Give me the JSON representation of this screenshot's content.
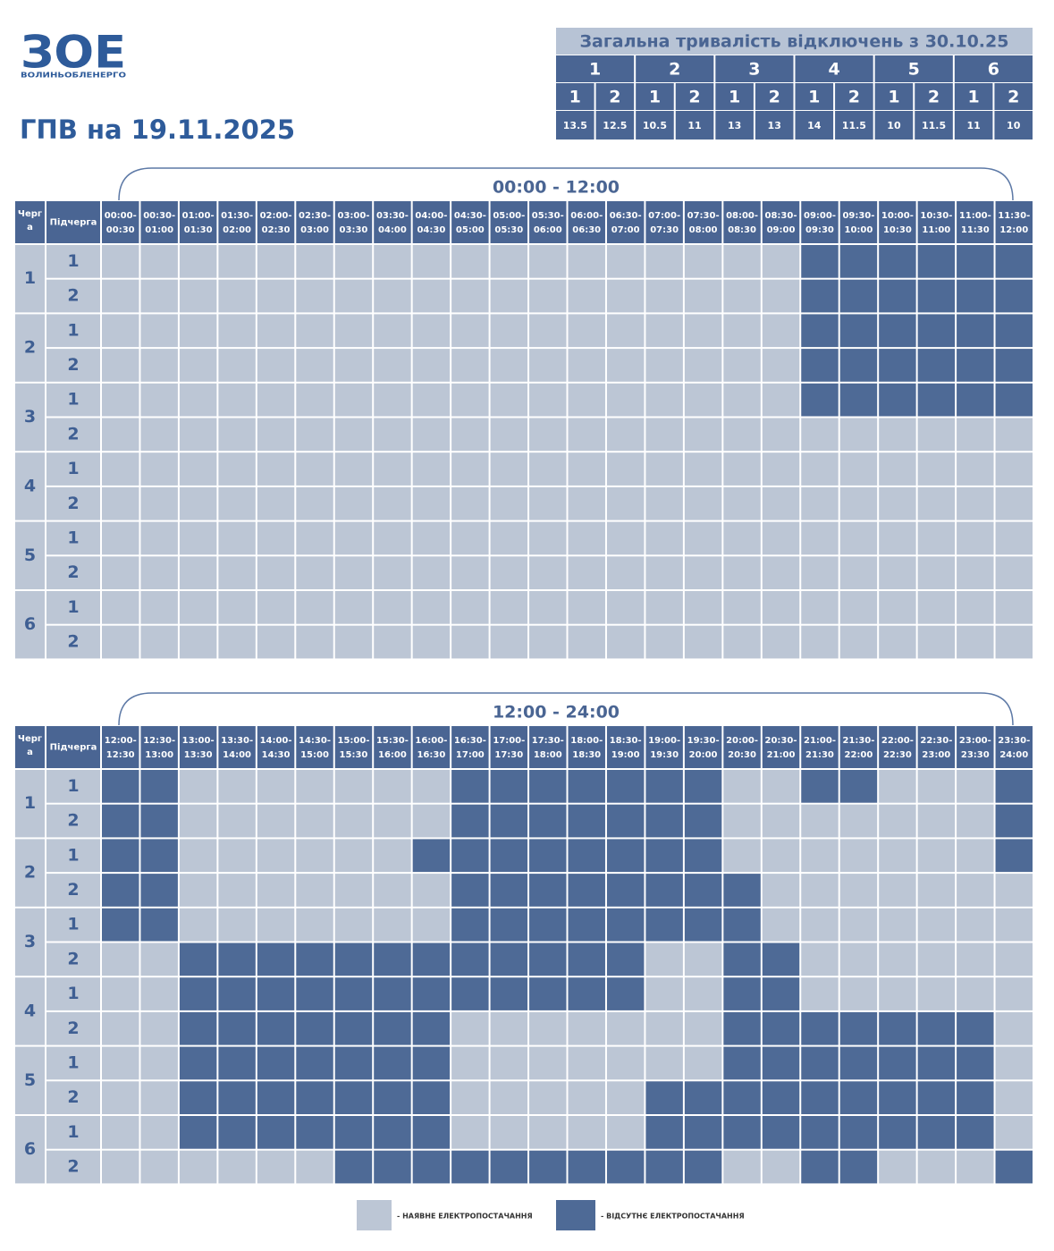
{
  "logo": {
    "mark": "ЗОЕ",
    "name": "ВОЛИНЬОБЛЕНЕРГО"
  },
  "title": "ГПВ на 19.11.2025",
  "summary": {
    "title": "Загальна тривалість відключень з 30.10.25",
    "groups": [
      {
        "label": "1",
        "subs": [
          {
            "label": "1",
            "value": 13.5
          },
          {
            "label": "2",
            "value": 12.5
          }
        ]
      },
      {
        "label": "2",
        "subs": [
          {
            "label": "1",
            "value": 10.5
          },
          {
            "label": "2",
            "value": 11
          }
        ]
      },
      {
        "label": "3",
        "subs": [
          {
            "label": "1",
            "value": 13
          },
          {
            "label": "2",
            "value": 13
          }
        ]
      },
      {
        "label": "4",
        "subs": [
          {
            "label": "1",
            "value": 14
          },
          {
            "label": "2",
            "value": 11.5
          }
        ]
      },
      {
        "label": "5",
        "subs": [
          {
            "label": "1",
            "value": 10
          },
          {
            "label": "2",
            "value": 11.5
          }
        ]
      },
      {
        "label": "6",
        "subs": [
          {
            "label": "1",
            "value": 11
          },
          {
            "label": "2",
            "value": 10
          }
        ]
      }
    ]
  },
  "halves": [
    {
      "title": "00:00 - 12:00",
      "queue_header": "Черга",
      "sub_header": "Підчерга",
      "slots": [
        [
          "00:00-",
          "00:30"
        ],
        [
          "00:30-",
          "01:00"
        ],
        [
          "01:00-",
          "01:30"
        ],
        [
          "01:30-",
          "02:00"
        ],
        [
          "02:00-",
          "02:30"
        ],
        [
          "02:30-",
          "03:00"
        ],
        [
          "03:00-",
          "03:30"
        ],
        [
          "03:30-",
          "04:00"
        ],
        [
          "04:00-",
          "04:30"
        ],
        [
          "04:30-",
          "05:00"
        ],
        [
          "05:00-",
          "05:30"
        ],
        [
          "05:30-",
          "06:00"
        ],
        [
          "06:00-",
          "06:30"
        ],
        [
          "06:30-",
          "07:00"
        ],
        [
          "07:00-",
          "07:30"
        ],
        [
          "07:30-",
          "08:00"
        ],
        [
          "08:00-",
          "08:30"
        ],
        [
          "08:30-",
          "09:00"
        ],
        [
          "09:00-",
          "09:30"
        ],
        [
          "09:30-",
          "10:00"
        ],
        [
          "10:00-",
          "10:30"
        ],
        [
          "10:30-",
          "11:00"
        ],
        [
          "11:00-",
          "11:30"
        ],
        [
          "11:30-",
          "12:00"
        ]
      ],
      "rows": [
        {
          "queue": "1",
          "subs": [
            {
              "label": "1",
              "off": [
                0,
                0,
                0,
                0,
                0,
                0,
                0,
                0,
                0,
                0,
                0,
                0,
                0,
                0,
                0,
                0,
                0,
                0,
                1,
                1,
                1,
                1,
                1,
                1
              ]
            },
            {
              "label": "2",
              "off": [
                0,
                0,
                0,
                0,
                0,
                0,
                0,
                0,
                0,
                0,
                0,
                0,
                0,
                0,
                0,
                0,
                0,
                0,
                1,
                1,
                1,
                1,
                1,
                1
              ]
            }
          ]
        },
        {
          "queue": "2",
          "subs": [
            {
              "label": "1",
              "off": [
                0,
                0,
                0,
                0,
                0,
                0,
                0,
                0,
                0,
                0,
                0,
                0,
                0,
                0,
                0,
                0,
                0,
                0,
                1,
                1,
                1,
                1,
                1,
                1
              ]
            },
            {
              "label": "2",
              "off": [
                0,
                0,
                0,
                0,
                0,
                0,
                0,
                0,
                0,
                0,
                0,
                0,
                0,
                0,
                0,
                0,
                0,
                0,
                1,
                1,
                1,
                1,
                1,
                1
              ]
            }
          ]
        },
        {
          "queue": "3",
          "subs": [
            {
              "label": "1",
              "off": [
                0,
                0,
                0,
                0,
                0,
                0,
                0,
                0,
                0,
                0,
                0,
                0,
                0,
                0,
                0,
                0,
                0,
                0,
                1,
                1,
                1,
                1,
                1,
                1
              ]
            },
            {
              "label": "2",
              "off": [
                0,
                0,
                0,
                0,
                0,
                0,
                0,
                0,
                0,
                0,
                0,
                0,
                0,
                0,
                0,
                0,
                0,
                0,
                0,
                0,
                0,
                0,
                0,
                0
              ]
            }
          ]
        },
        {
          "queue": "4",
          "subs": [
            {
              "label": "1",
              "off": [
                0,
                0,
                0,
                0,
                0,
                0,
                0,
                0,
                0,
                0,
                0,
                0,
                0,
                0,
                0,
                0,
                0,
                0,
                0,
                0,
                0,
                0,
                0,
                0
              ]
            },
            {
              "label": "2",
              "off": [
                0,
                0,
                0,
                0,
                0,
                0,
                0,
                0,
                0,
                0,
                0,
                0,
                0,
                0,
                0,
                0,
                0,
                0,
                0,
                0,
                0,
                0,
                0,
                0
              ]
            }
          ]
        },
        {
          "queue": "5",
          "subs": [
            {
              "label": "1",
              "off": [
                0,
                0,
                0,
                0,
                0,
                0,
                0,
                0,
                0,
                0,
                0,
                0,
                0,
                0,
                0,
                0,
                0,
                0,
                0,
                0,
                0,
                0,
                0,
                0
              ]
            },
            {
              "label": "2",
              "off": [
                0,
                0,
                0,
                0,
                0,
                0,
                0,
                0,
                0,
                0,
                0,
                0,
                0,
                0,
                0,
                0,
                0,
                0,
                0,
                0,
                0,
                0,
                0,
                0
              ]
            }
          ]
        },
        {
          "queue": "6",
          "subs": [
            {
              "label": "1",
              "off": [
                0,
                0,
                0,
                0,
                0,
                0,
                0,
                0,
                0,
                0,
                0,
                0,
                0,
                0,
                0,
                0,
                0,
                0,
                0,
                0,
                0,
                0,
                0,
                0
              ]
            },
            {
              "label": "2",
              "off": [
                0,
                0,
                0,
                0,
                0,
                0,
                0,
                0,
                0,
                0,
                0,
                0,
                0,
                0,
                0,
                0,
                0,
                0,
                0,
                0,
                0,
                0,
                0,
                0
              ]
            }
          ]
        }
      ]
    },
    {
      "title": "12:00 - 24:00",
      "queue_header": "Черга",
      "sub_header": "Підчерга",
      "slots": [
        [
          "12:00-",
          "12:30"
        ],
        [
          "12:30-",
          "13:00"
        ],
        [
          "13:00-",
          "13:30"
        ],
        [
          "13:30-",
          "14:00"
        ],
        [
          "14:00-",
          "14:30"
        ],
        [
          "14:30-",
          "15:00"
        ],
        [
          "15:00-",
          "15:30"
        ],
        [
          "15:30-",
          "16:00"
        ],
        [
          "16:00-",
          "16:30"
        ],
        [
          "16:30-",
          "17:00"
        ],
        [
          "17:00-",
          "17:30"
        ],
        [
          "17:30-",
          "18:00"
        ],
        [
          "18:00-",
          "18:30"
        ],
        [
          "18:30-",
          "19:00"
        ],
        [
          "19:00-",
          "19:30"
        ],
        [
          "19:30-",
          "20:00"
        ],
        [
          "20:00-",
          "20:30"
        ],
        [
          "20:30-",
          "21:00"
        ],
        [
          "21:00-",
          "21:30"
        ],
        [
          "21:30-",
          "22:00"
        ],
        [
          "22:00-",
          "22:30"
        ],
        [
          "22:30-",
          "23:00"
        ],
        [
          "23:00-",
          "23:30"
        ],
        [
          "23:30-",
          "24:00"
        ]
      ],
      "rows": [
        {
          "queue": "1",
          "subs": [
            {
              "label": "1",
              "off": [
                1,
                1,
                0,
                0,
                0,
                0,
                0,
                0,
                0,
                1,
                1,
                1,
                1,
                1,
                1,
                1,
                0,
                0,
                1,
                1,
                0,
                0,
                0,
                1
              ]
            },
            {
              "label": "2",
              "off": [
                1,
                1,
                0,
                0,
                0,
                0,
                0,
                0,
                0,
                1,
                1,
                1,
                1,
                1,
                1,
                1,
                0,
                0,
                0,
                0,
                0,
                0,
                0,
                1
              ]
            }
          ]
        },
        {
          "queue": "2",
          "subs": [
            {
              "label": "1",
              "off": [
                1,
                1,
                0,
                0,
                0,
                0,
                0,
                0,
                1,
                1,
                1,
                1,
                1,
                1,
                1,
                1,
                0,
                0,
                0,
                0,
                0,
                0,
                0,
                1
              ]
            },
            {
              "label": "2",
              "off": [
                1,
                1,
                0,
                0,
                0,
                0,
                0,
                0,
                0,
                1,
                1,
                1,
                1,
                1,
                1,
                1,
                1,
                0,
                0,
                0,
                0,
                0,
                0,
                0
              ]
            }
          ]
        },
        {
          "queue": "3",
          "subs": [
            {
              "label": "1",
              "off": [
                1,
                1,
                0,
                0,
                0,
                0,
                0,
                0,
                0,
                1,
                1,
                1,
                1,
                1,
                1,
                1,
                1,
                0,
                0,
                0,
                0,
                0,
                0,
                0
              ]
            },
            {
              "label": "2",
              "off": [
                0,
                0,
                1,
                1,
                1,
                1,
                1,
                1,
                1,
                1,
                1,
                1,
                1,
                1,
                0,
                0,
                1,
                1,
                0,
                0,
                0,
                0,
                0,
                0
              ]
            }
          ]
        },
        {
          "queue": "4",
          "subs": [
            {
              "label": "1",
              "off": [
                0,
                0,
                1,
                1,
                1,
                1,
                1,
                1,
                1,
                1,
                1,
                1,
                1,
                1,
                0,
                0,
                1,
                1,
                0,
                0,
                0,
                0,
                0,
                0
              ]
            },
            {
              "label": "2",
              "off": [
                0,
                0,
                1,
                1,
                1,
                1,
                1,
                1,
                1,
                0,
                0,
                0,
                0,
                0,
                0,
                0,
                1,
                1,
                1,
                1,
                1,
                1,
                1,
                0
              ]
            }
          ]
        },
        {
          "queue": "5",
          "subs": [
            {
              "label": "1",
              "off": [
                0,
                0,
                1,
                1,
                1,
                1,
                1,
                1,
                1,
                0,
                0,
                0,
                0,
                0,
                0,
                0,
                1,
                1,
                1,
                1,
                1,
                1,
                1,
                0
              ]
            },
            {
              "label": "2",
              "off": [
                0,
                0,
                1,
                1,
                1,
                1,
                1,
                1,
                1,
                0,
                0,
                0,
                0,
                0,
                1,
                1,
                1,
                1,
                1,
                1,
                1,
                1,
                1,
                0
              ]
            }
          ]
        },
        {
          "queue": "6",
          "subs": [
            {
              "label": "1",
              "off": [
                0,
                0,
                1,
                1,
                1,
                1,
                1,
                1,
                1,
                0,
                0,
                0,
                0,
                0,
                1,
                1,
                1,
                1,
                1,
                1,
                1,
                1,
                1,
                0
              ]
            },
            {
              "label": "2",
              "off": [
                0,
                0,
                0,
                0,
                0,
                0,
                1,
                1,
                1,
                1,
                1,
                1,
                1,
                1,
                1,
                1,
                0,
                0,
                1,
                1,
                0,
                0,
                0,
                1
              ]
            }
          ]
        }
      ]
    }
  ],
  "legend": {
    "on": "- НАЯВНЕ ЕЛЕКТРОПОСТАЧАННЯ",
    "off": "- ВІДСУТНЄ ЕЛЕКТРОПОСТАЧАННЯ"
  }
}
